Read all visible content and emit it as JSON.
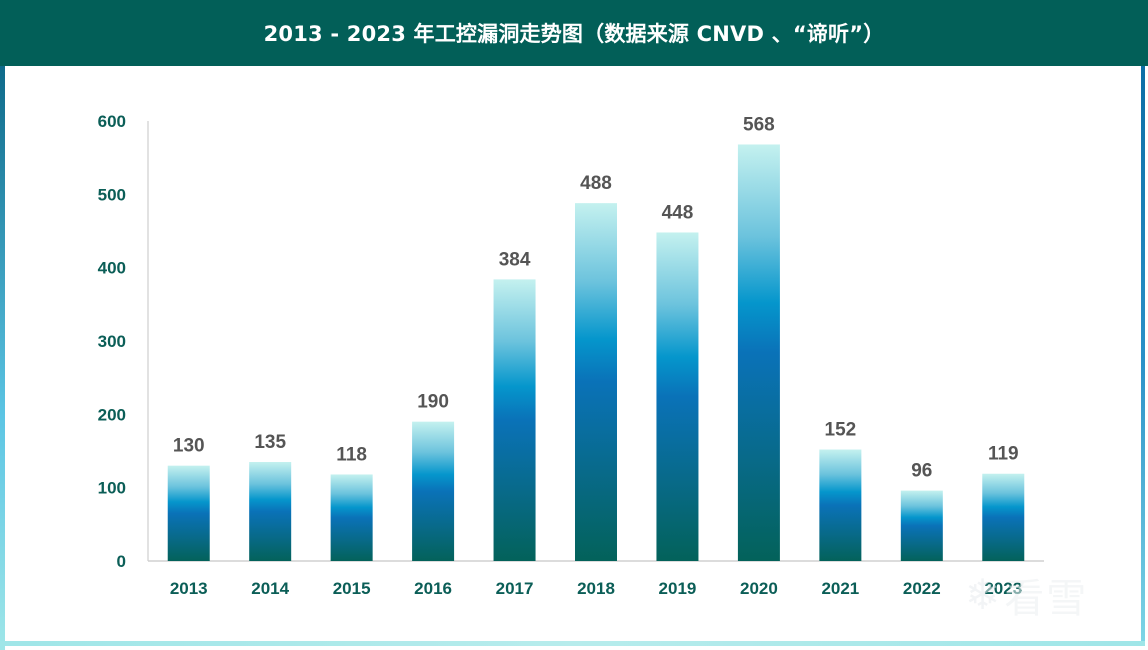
{
  "header": {
    "title": "2013 - 2023 年工控漏洞走势图（数据来源 CNVD 、“谛听”）"
  },
  "watermark": {
    "icon": "snowflake-icon",
    "text": "看雪"
  },
  "colors": {
    "header_bg": "#025f58",
    "axis_text": "#0b5e57",
    "data_label": "#555555",
    "bar_gradient_top": "#c4f1ef",
    "bar_gradient_mid": "#0a72b8",
    "bar_gradient_bottom": "#03625a"
  },
  "chart_data": {
    "type": "bar",
    "title": "2013 - 2023 年工控漏洞走势图（数据来源 CNVD 、“谛听”）",
    "xlabel": "",
    "ylabel": "",
    "categories": [
      "2013",
      "2014",
      "2015",
      "2016",
      "2017",
      "2018",
      "2019",
      "2020",
      "2021",
      "2022",
      "2023"
    ],
    "values": [
      130,
      135,
      118,
      190,
      384,
      488,
      448,
      568,
      152,
      96,
      119
    ],
    "data_labels": [
      "130",
      "135",
      "118",
      "190",
      "384",
      "488",
      "448",
      "568",
      "152",
      "96",
      "119"
    ],
    "ylim": [
      0,
      600
    ],
    "yticks": [
      0,
      100,
      200,
      300,
      400,
      500,
      600
    ],
    "ytick_labels": [
      "0",
      "100",
      "200",
      "300",
      "400",
      "500",
      "600"
    ],
    "grid": false,
    "legend": "none"
  }
}
